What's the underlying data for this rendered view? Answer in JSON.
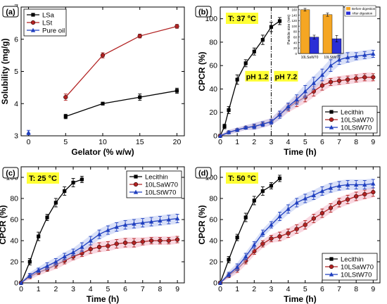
{
  "chart_data": [
    {
      "panel": "(a)",
      "type": "line",
      "xlabel": "Gelator (% w/w)",
      "ylabel": "Solubility (mg/g)",
      "xlim": [
        -1,
        21
      ],
      "ylim": [
        3,
        7
      ],
      "xticks": [
        0,
        5,
        10,
        15,
        20
      ],
      "yticks": [
        3,
        4,
        5,
        6,
        7
      ],
      "legend_position": "top-left",
      "series": [
        {
          "name": "LSa",
          "color": "#000000",
          "marker": "square",
          "x": [
            5,
            10,
            15,
            20
          ],
          "y": [
            3.6,
            4.0,
            4.2,
            4.4
          ],
          "err": [
            0.07,
            0.03,
            0.1,
            0.08
          ]
        },
        {
          "name": "LSt",
          "color": "#b22222",
          "marker": "circle",
          "x": [
            5,
            10,
            15,
            20
          ],
          "y": [
            4.2,
            5.5,
            6.1,
            6.4
          ],
          "err": [
            0.1,
            0.08,
            0.06,
            0.06
          ]
        },
        {
          "name": "Pure oil",
          "color": "#1f3fbf",
          "marker": "triangle",
          "x": [
            0
          ],
          "y": [
            3.1
          ],
          "err": [
            0.07
          ]
        }
      ]
    },
    {
      "panel": "(b)",
      "type": "line",
      "temperature_label": "T: 37 °C",
      "phase_labels": [
        "pH 1.2",
        "pH 7.2"
      ],
      "phase_boundary_x": 3,
      "xlabel": "Time (h)",
      "ylabel": "CPCR (%)",
      "xlim": [
        0,
        9.4
      ],
      "ylim": [
        0,
        110
      ],
      "xticks": [
        0,
        1,
        2,
        3,
        4,
        5,
        6,
        7,
        8,
        9
      ],
      "yticks": [
        0,
        20,
        40,
        60,
        80,
        100
      ],
      "legend_position": "bottom-right",
      "series": [
        {
          "name": "Lecithin",
          "color": "#000000",
          "marker": "square",
          "x": [
            0,
            0.25,
            0.5,
            1,
            1.5,
            2,
            2.5,
            3,
            3.5
          ],
          "y": [
            0,
            8,
            22,
            48,
            62,
            72,
            82,
            93,
            98
          ],
          "err": [
            0,
            2,
            3,
            4,
            3,
            3,
            4,
            4,
            3
          ]
        },
        {
          "name": "10LSaW70",
          "color": "#b22222",
          "marker": "circle",
          "x": [
            0,
            0.5,
            1,
            1.5,
            2,
            2.5,
            3,
            3.5,
            4,
            4.5,
            5,
            5.5,
            6,
            6.5,
            7,
            7.5,
            8,
            8.5,
            9
          ],
          "y": [
            0,
            3,
            5,
            7,
            8,
            10,
            12,
            18,
            24,
            29,
            33,
            38,
            43,
            46,
            47,
            48,
            49,
            50,
            50
          ],
          "err": [
            0,
            1,
            1,
            1,
            2,
            2,
            2,
            3,
            3,
            4,
            4,
            4,
            4,
            3,
            3,
            3,
            3,
            3,
            3
          ]
        },
        {
          "name": "10LStW70",
          "color": "#1f3fbf",
          "marker": "triangle",
          "x": [
            0,
            0.5,
            1,
            1.5,
            2,
            2.5,
            3,
            3.5,
            4,
            4.5,
            5,
            5.5,
            6,
            6.5,
            7,
            7.5,
            8,
            8.5,
            9
          ],
          "y": [
            0,
            3,
            5,
            7,
            8,
            10,
            12,
            18,
            25,
            31,
            38,
            45,
            52,
            60,
            65,
            67,
            68,
            69,
            70
          ],
          "err": [
            0,
            1,
            1,
            1,
            2,
            2,
            2,
            3,
            3,
            4,
            5,
            5,
            5,
            5,
            4,
            4,
            3,
            3,
            3
          ]
        }
      ],
      "inset": {
        "ylabel": "Particle size (nm)",
        "yticks": [
          0,
          20,
          40,
          60,
          80,
          100,
          120,
          140,
          160
        ],
        "ylim": [
          0,
          175
        ],
        "categories": [
          "10LSaW70",
          "10LStW70"
        ],
        "legend": [
          "Before digestion",
          "After digestion"
        ],
        "series": [
          {
            "name": "Before digestion",
            "color": "#f5a623",
            "values": [
              160,
              142
            ],
            "err": [
              5,
              6
            ]
          },
          {
            "name": "After digestion",
            "color": "#2b2fd6",
            "values": [
              60,
              54
            ],
            "err": [
              7,
              12
            ]
          }
        ]
      }
    },
    {
      "panel": "(c)",
      "type": "line",
      "temperature_label": "T: 25 °C",
      "xlabel": "Time (h)",
      "ylabel": "CPCR (%)",
      "xlim": [
        0,
        9.4
      ],
      "ylim": [
        0,
        110
      ],
      "xticks": [
        0,
        1,
        2,
        3,
        4,
        5,
        6,
        7,
        8,
        9
      ],
      "yticks": [
        0,
        20,
        40,
        60,
        80,
        100
      ],
      "legend_position": "top-right",
      "series": [
        {
          "name": "Lecithin",
          "color": "#000000",
          "marker": "square",
          "x": [
            0,
            0.5,
            1,
            1.5,
            2,
            2.5,
            3,
            3.5
          ],
          "y": [
            0,
            20,
            44,
            62,
            76,
            87,
            95,
            98
          ],
          "err": [
            0,
            3,
            4,
            3,
            4,
            4,
            4,
            3
          ]
        },
        {
          "name": "10LSaW70",
          "color": "#b22222",
          "marker": "circle",
          "x": [
            0,
            0.5,
            1,
            1.5,
            2,
            2.5,
            3,
            3.5,
            4,
            4.5,
            5,
            5.5,
            6,
            6.5,
            7,
            7.5,
            8,
            8.5,
            9
          ],
          "y": [
            0,
            6,
            10,
            13,
            17,
            21,
            25,
            28,
            32,
            34,
            35,
            37,
            38,
            38,
            39,
            40,
            40,
            40,
            41
          ],
          "err": [
            0,
            2,
            2,
            2,
            3,
            3,
            3,
            3,
            4,
            4,
            4,
            4,
            4,
            4,
            3,
            3,
            3,
            3,
            3
          ]
        },
        {
          "name": "10LStW70",
          "color": "#1f3fbf",
          "marker": "triangle",
          "x": [
            0,
            0.5,
            1,
            1.5,
            2,
            2.5,
            3,
            3.5,
            4,
            4.5,
            5,
            5.5,
            6,
            6.5,
            7,
            7.5,
            8,
            8.5,
            9
          ],
          "y": [
            0,
            7,
            12,
            16,
            20,
            25,
            29,
            34,
            40,
            46,
            50,
            53,
            55,
            56,
            57,
            58,
            59,
            60,
            61
          ],
          "err": [
            0,
            2,
            2,
            3,
            3,
            3,
            3,
            4,
            4,
            4,
            4,
            4,
            4,
            4,
            4,
            4,
            4,
            4,
            4
          ]
        }
      ]
    },
    {
      "panel": "(d)",
      "type": "line",
      "temperature_label": "T: 50 °C",
      "xlabel": "Time (h)",
      "ylabel": "CPCR (%)",
      "xlim": [
        0,
        9.4
      ],
      "ylim": [
        0,
        110
      ],
      "xticks": [
        0,
        1,
        2,
        3,
        4,
        5,
        6,
        7,
        8,
        9
      ],
      "yticks": [
        0,
        20,
        40,
        60,
        80,
        100
      ],
      "legend_position": "bottom-right",
      "series": [
        {
          "name": "Lecithin",
          "color": "#000000",
          "marker": "square",
          "x": [
            0,
            0.5,
            1,
            1.5,
            2,
            2.5,
            3,
            3.5
          ],
          "y": [
            0,
            22,
            43,
            62,
            78,
            87,
            92,
            99
          ],
          "err": [
            0,
            3,
            3,
            4,
            4,
            4,
            3,
            3
          ]
        },
        {
          "name": "10LSaW70",
          "color": "#b22222",
          "marker": "circle",
          "x": [
            0,
            0.5,
            1,
            1.5,
            2,
            2.5,
            3,
            3.5,
            4,
            4.5,
            5,
            5.5,
            6,
            6.5,
            7,
            7.5,
            8,
            8.5,
            9
          ],
          "y": [
            0,
            7,
            13,
            21,
            30,
            37,
            42,
            44,
            47,
            51,
            55,
            61,
            66,
            71,
            76,
            79,
            82,
            84,
            86
          ],
          "err": [
            0,
            2,
            3,
            3,
            3,
            3,
            3,
            4,
            4,
            4,
            4,
            4,
            4,
            4,
            4,
            4,
            4,
            4,
            4
          ]
        },
        {
          "name": "10LStW70",
          "color": "#1f3fbf",
          "marker": "triangle",
          "x": [
            0,
            0.5,
            1,
            1.5,
            2,
            2.5,
            3,
            3.5,
            4,
            4.5,
            5,
            5.5,
            6,
            6.5,
            7,
            7.5,
            8,
            8.5,
            9
          ],
          "y": [
            0,
            8,
            15,
            25,
            36,
            47,
            55,
            63,
            70,
            76,
            80,
            83,
            87,
            90,
            92,
            93,
            93,
            93,
            94
          ],
          "err": [
            0,
            2,
            3,
            3,
            3,
            3,
            3,
            4,
            4,
            4,
            4,
            4,
            4,
            4,
            4,
            4,
            4,
            4,
            4
          ]
        }
      ]
    }
  ]
}
